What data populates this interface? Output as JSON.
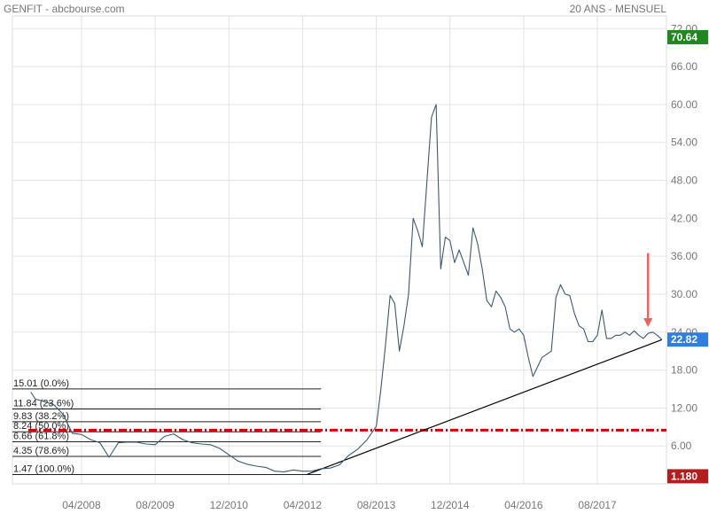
{
  "header": {
    "left_title": "GENFIT - abcbourse.com",
    "right_title": "20 ANS - MENSUEL"
  },
  "chart_data": {
    "type": "line",
    "title": "GENFIT - abcbourse.com",
    "subtitle": "20 ANS - MENSUEL",
    "x_ticks": [
      "04/2008",
      "08/2009",
      "12/2010",
      "04/2012",
      "08/2013",
      "12/2014",
      "04/2016",
      "08/2017"
    ],
    "y_ticks": [
      "72.00",
      "66.00",
      "60.00",
      "54.00",
      "48.00",
      "42.00",
      "36.00",
      "30.00",
      "24.00",
      "18.00",
      "12.00",
      "6.00"
    ],
    "ylim": [
      0,
      74
    ],
    "series": [
      {
        "color": "#3d5a6c",
        "x": [
          "2007-05",
          "2007-06",
          "2007-08",
          "2007-10",
          "2007-12",
          "2008-02",
          "2008-04",
          "2008-06",
          "2008-08",
          "2008-10",
          "2008-12",
          "2009-02",
          "2009-04",
          "2009-06",
          "2009-08",
          "2009-10",
          "2009-12",
          "2010-02",
          "2010-04",
          "2010-06",
          "2010-08",
          "2010-10",
          "2010-12",
          "2011-02",
          "2011-04",
          "2011-06",
          "2011-08",
          "2011-10",
          "2011-12",
          "2012-02",
          "2012-04",
          "2012-06",
          "2012-08",
          "2012-10",
          "2012-12",
          "2013-02",
          "2013-04",
          "2013-06",
          "2013-08",
          "2013-09",
          "2013-10",
          "2013-11",
          "2013-12",
          "2014-01",
          "2014-02",
          "2014-03",
          "2014-04",
          "2014-05",
          "2014-06",
          "2014-08",
          "2014-09",
          "2014-10",
          "2014-11",
          "2014-12",
          "2015-01",
          "2015-02",
          "2015-03",
          "2015-04",
          "2015-05",
          "2015-06",
          "2015-07",
          "2015-08",
          "2015-09",
          "2015-10",
          "2015-11",
          "2015-12",
          "2016-01",
          "2016-02",
          "2016-03",
          "2016-04",
          "2016-05",
          "2016-06",
          "2016-07",
          "2016-08",
          "2016-09",
          "2016-10",
          "2016-11",
          "2016-12",
          "2017-01",
          "2017-02",
          "2017-03",
          "2017-04",
          "2017-05",
          "2017-06",
          "2017-07",
          "2017-08",
          "2017-09",
          "2017-10",
          "2017-11",
          "2017-12",
          "2018-01",
          "2018-02",
          "2018-03",
          "2018-04",
          "2018-05",
          "2018-06",
          "2018-07",
          "2018-08",
          "2018-09",
          "2018-10"
        ],
        "y": [
          14.5,
          13.4,
          13.0,
          12.5,
          11.0,
          8.0,
          7.8,
          7.0,
          6.5,
          4.2,
          6.5,
          6.6,
          6.6,
          6.3,
          6.2,
          7.5,
          7.9,
          7.0,
          6.5,
          6.3,
          6.2,
          5.6,
          4.6,
          3.6,
          3.1,
          2.8,
          2.6,
          2.0,
          1.9,
          2.2,
          2.0,
          2.0,
          2.4,
          2.5,
          3.0,
          4.5,
          5.5,
          7.0,
          9.1,
          15.0,
          22.0,
          29.8,
          28.5,
          21.0,
          25.0,
          30.0,
          42.0,
          40.0,
          37.5,
          58.0,
          60.0,
          34.0,
          39.0,
          38.5,
          35.0,
          37.0,
          35.0,
          33.0,
          40.5,
          38.0,
          34.0,
          29.0,
          28.0,
          30.5,
          29.5,
          28.0,
          24.5,
          24.0,
          24.5,
          23.5,
          20.0,
          17.0,
          18.5,
          20.0,
          20.5,
          21.0,
          29.5,
          31.5,
          30.0,
          29.8,
          27.0,
          25.0,
          24.5,
          22.5,
          22.5,
          23.5,
          27.5,
          23.0,
          23.0,
          23.5,
          23.5,
          24.0,
          23.5,
          24.2,
          23.5,
          23.0,
          23.8,
          24.0,
          23.5,
          22.82
        ]
      }
    ],
    "fibonacci": {
      "levels": [
        {
          "value": 15.01,
          "label": "15.01  (0.0%)"
        },
        {
          "value": 11.84,
          "label": "11.84  (23.6%)"
        },
        {
          "value": 9.83,
          "label": "9.83  (38.2%)"
        },
        {
          "value": 8.24,
          "label": "8.24  (50.0%)"
        },
        {
          "value": 6.66,
          "label": "6.66  (61.8%)"
        },
        {
          "value": 4.35,
          "label": "4.35  (78.6%)"
        },
        {
          "value": 1.47,
          "label": "1.47  (100.0%)"
        }
      ],
      "x_start": "2007-01",
      "x_end": "2012-08"
    },
    "support_line": {
      "color": "#000000",
      "from": {
        "x": "2012-05",
        "y": 1.5
      },
      "to": {
        "x": "2018-10",
        "y": 22.8
      }
    },
    "resistance_line": {
      "value": 8.5,
      "color": "#d40000"
    },
    "arrow": {
      "color": "#f06060",
      "x": "2018-07",
      "y_from": 36.5,
      "y_to": 24.8
    },
    "markers": [
      {
        "label": "70.64",
        "value": 70.64,
        "color": "#1e8a1e"
      },
      {
        "label": "22.82",
        "value": 22.82,
        "color": "#2f7fe0"
      },
      {
        "label": "1.180",
        "value": 1.2,
        "color": "#b51d1d"
      }
    ],
    "grid": true
  }
}
